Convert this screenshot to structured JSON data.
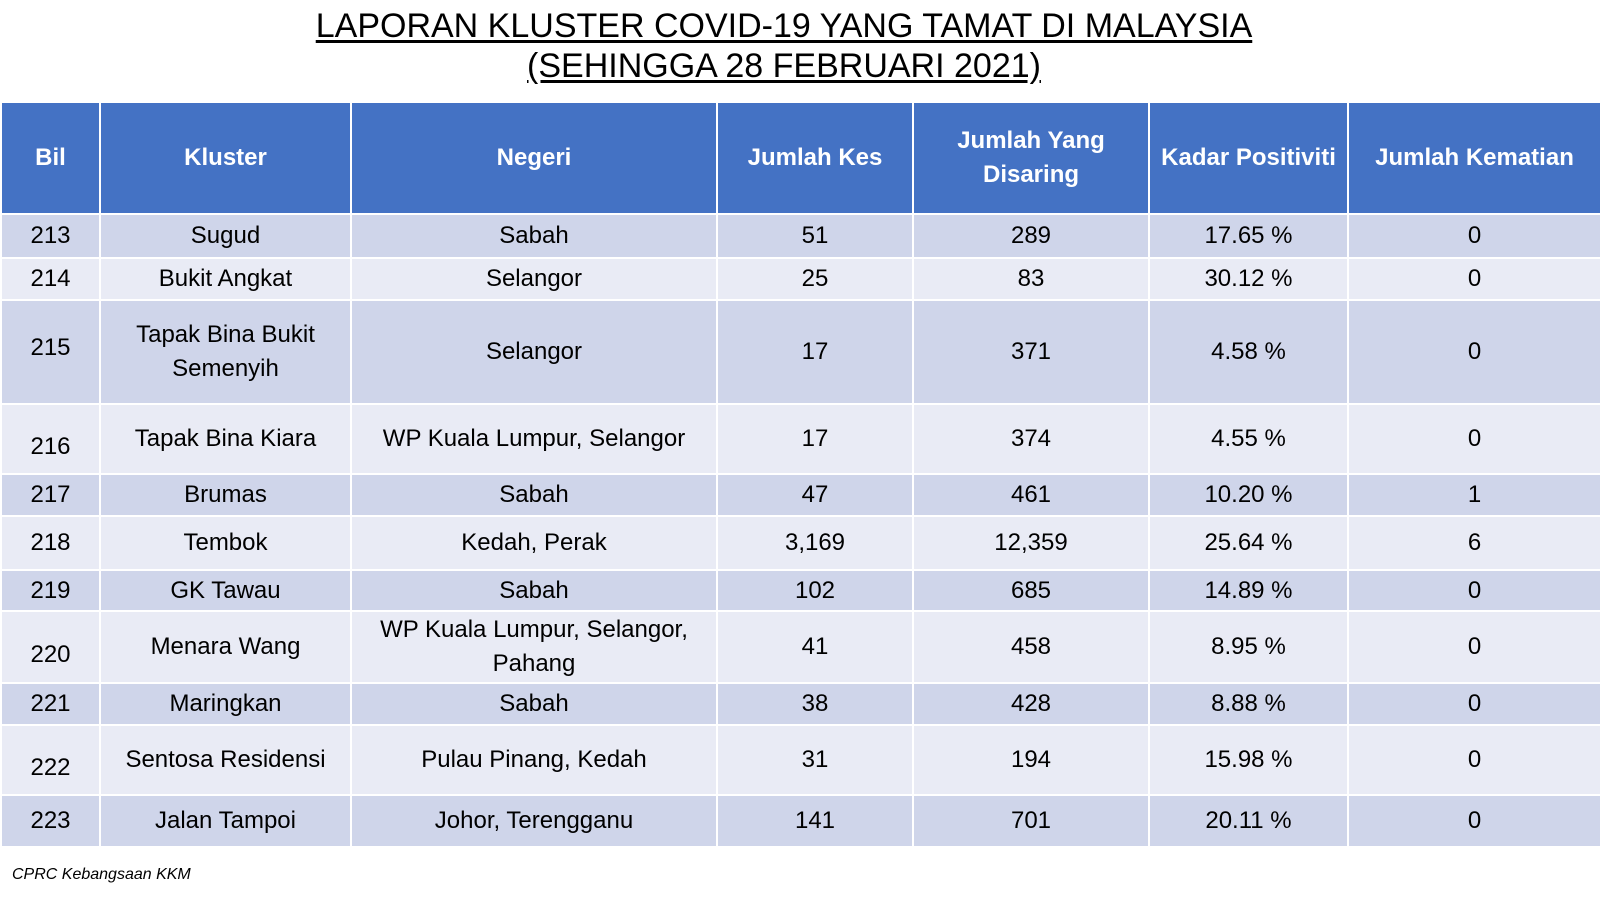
{
  "title": {
    "line1": "LAPORAN KLUSTER COVID-19 YANG TAMAT DI MALAYSIA",
    "line2": "(SEHINGGA  28 FEBRUARI 2021)"
  },
  "table": {
    "headers": [
      "Bil",
      "Kluster",
      "Negeri",
      "Jumlah Kes",
      "Jumlah Yang Disaring",
      "Kadar Positiviti",
      "Jumlah Kematian"
    ],
    "rows": [
      [
        "213",
        "Sugud",
        "Sabah",
        "51",
        "289",
        "17.65 %",
        "0"
      ],
      [
        "214",
        "Bukit Angkat",
        "Selangor",
        "25",
        "83",
        "30.12 %",
        "0"
      ],
      [
        "215",
        "Tapak Bina Bukit Semenyih",
        "Selangor",
        "17",
        "371",
        "4.58 %",
        "0"
      ],
      [
        "216",
        "Tapak Bina Kiara",
        "WP Kuala Lumpur, Selangor",
        "17",
        "374",
        "4.55 %",
        "0"
      ],
      [
        "217",
        "Brumas",
        "Sabah",
        "47",
        "461",
        "10.20 %",
        "1"
      ],
      [
        "218",
        "Tembok",
        "Kedah, Perak",
        "3,169",
        "12,359",
        "25.64 %",
        "6"
      ],
      [
        "219",
        "GK Tawau",
        "Sabah",
        "102",
        "685",
        "14.89 %",
        "0"
      ],
      [
        "220",
        "Menara Wang",
        "WP Kuala Lumpur, Selangor, Pahang",
        "41",
        "458",
        "8.95 %",
        "0"
      ],
      [
        "221",
        "Maringkan",
        "Sabah",
        "38",
        "428",
        "8.88 %",
        "0"
      ],
      [
        "222",
        "Sentosa Residensi",
        "Pulau Pinang, Kedah",
        "31",
        "194",
        "15.98 %",
        "0"
      ],
      [
        "223",
        "Jalan Tampoi",
        "Johor, Terengganu",
        "141",
        "701",
        "20.11 %",
        "0"
      ]
    ]
  },
  "footer": "CPRC Kebangsaan KKM",
  "colors": {
    "header_bg": "#4472c4",
    "row_dark": "#cfd5ea",
    "row_light": "#e9ebf5"
  }
}
